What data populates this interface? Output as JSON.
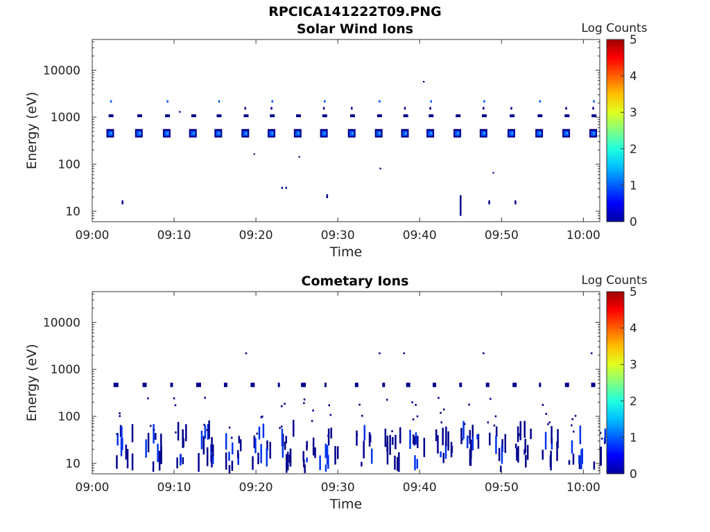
{
  "figure_title": "RPCICA141222T09.PNG",
  "chart_data": [
    {
      "type": "heatmap",
      "title": "Solar Wind Ions",
      "xlabel": "Time",
      "ylabel": "Energy (eV)",
      "x_ticks": [
        "09:00",
        "09:10",
        "09:20",
        "09:30",
        "09:40",
        "09:50",
        "10:00"
      ],
      "x_range": [
        "09:00",
        "10:02"
      ],
      "y_ticks": [
        "10",
        "100",
        "1000",
        "10000"
      ],
      "y_scale": "log",
      "y_range": [
        6,
        45000
      ],
      "colorbar": {
        "label": "Log Counts",
        "ticks": [
          "0",
          "1",
          "2",
          "3",
          "4",
          "5"
        ],
        "range": [
          0,
          5
        ],
        "colormap": "jet"
      },
      "colors": {
        "low": "#00008b",
        "mid": "#0055ff",
        "high": "#2aa0ff"
      },
      "sweep_times_min": [
        2.2,
        5.7,
        9.1,
        12.3,
        15.4,
        18.7,
        21.9,
        25.1,
        28.3,
        31.7,
        35.0,
        38.2,
        41.3,
        44.6,
        47.8,
        51.2,
        54.6,
        57.9,
        61.2
      ],
      "clusters": [
        {
          "energy_range": [
            380,
            520
          ],
          "log_counts": 1.2
        },
        {
          "energy_range": [
            1000,
            1150
          ],
          "log_counts": 0.6
        }
      ],
      "sparse_points": [
        {
          "t": 3.7,
          "energy_range": [
            14,
            17
          ]
        },
        {
          "t": 10.7,
          "energy_range": [
            1250,
            1350
          ]
        },
        {
          "t": 19.8,
          "energy_range": [
            160,
            170
          ]
        },
        {
          "t": 23.2,
          "energy_range": [
            30,
            33
          ]
        },
        {
          "t": 23.7,
          "energy_range": [
            30,
            33
          ]
        },
        {
          "t": 25.3,
          "energy_range": [
            140,
            148
          ]
        },
        {
          "t": 28.7,
          "energy_range": [
            19,
            23
          ]
        },
        {
          "t": 35.2,
          "energy_range": [
            78,
            84
          ]
        },
        {
          "t": 40.5,
          "energy_range": [
            5500,
            5900
          ]
        },
        {
          "t": 45.0,
          "energy_range": [
            8,
            22
          ]
        },
        {
          "t": 48.5,
          "energy_range": [
            14,
            17
          ]
        },
        {
          "t": 49.0,
          "energy_range": [
            65,
            68
          ]
        },
        {
          "t": 51.7,
          "energy_range": [
            14,
            17
          ]
        }
      ]
    },
    {
      "type": "heatmap",
      "title": "Cometary Ions",
      "xlabel": "Time",
      "ylabel": "Energy (eV)",
      "x_ticks": [
        "09:00",
        "09:10",
        "09:20",
        "09:30",
        "09:40",
        "09:50",
        "10:00"
      ],
      "x_range": [
        "09:00",
        "10:02"
      ],
      "y_ticks": [
        "10",
        "100",
        "1000",
        "10000"
      ],
      "y_scale": "log",
      "y_range": [
        6,
        45000
      ],
      "colorbar": {
        "label": "Log Counts",
        "ticks": [
          "0",
          "1",
          "2",
          "3",
          "4",
          "5"
        ],
        "range": [
          0,
          5
        ],
        "colormap": "jet"
      },
      "colors": {
        "low": "#00008b",
        "mid": "#0033ee"
      },
      "sweep_times_min": [
        2.9,
        6.4,
        9.7,
        13.0,
        16.3,
        19.6,
        22.8,
        25.8,
        28.5,
        32.3,
        35.6,
        38.6,
        41.8,
        45.0,
        48.3,
        51.6,
        54.7,
        58.0,
        61.2
      ],
      "burst_energy_range": [
        6,
        80
      ],
      "line_energy": 480,
      "log_counts": 0.4
    }
  ]
}
